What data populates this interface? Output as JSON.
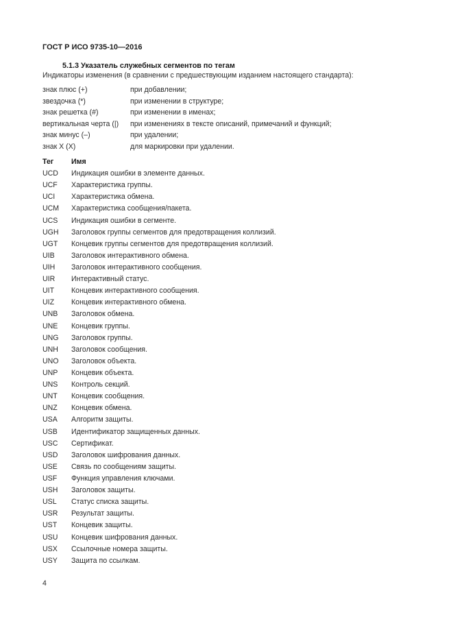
{
  "header": "ГОСТ Р ИСО 9735-10—2016",
  "section_title": "5.1.3 Указатель служебных сегментов по тегам",
  "intro": "Индикаторы изменения (в сравнении с предшествующим изданием настоящего стандарта):",
  "indicators": [
    {
      "sign": "знак плюс (+)",
      "meaning": "при добавлении;"
    },
    {
      "sign": "звездочка (*)",
      "meaning": "при изменении в структуре;"
    },
    {
      "sign": "знак решетка (#)",
      "meaning": "при изменении в именах;"
    },
    {
      "sign": "вертикальная черта (|)",
      "meaning": "при изменениях в тексте описаний, примечаний и функций;"
    },
    {
      "sign": "знак минус (–)",
      "meaning": "при удалении;"
    },
    {
      "sign": "знак X (X)",
      "meaning": "для маркировки при удалении."
    }
  ],
  "table": {
    "headers": {
      "tag": "Тег",
      "name": "Имя"
    },
    "rows": [
      {
        "tag": "UCD",
        "name": "Индикация ошибки в элементе данных."
      },
      {
        "tag": "UCF",
        "name": "Характеристика группы."
      },
      {
        "tag": "UCI",
        "name": "Характеристика обмена."
      },
      {
        "tag": "UCM",
        "name": "Характеристика сообщения/пакета."
      },
      {
        "tag": "UCS",
        "name": "Индикация ошибки в сегменте."
      },
      {
        "tag": "UGH",
        "name": "Заголовок группы сегментов для предотвращения коллизий."
      },
      {
        "tag": "UGT",
        "name": "Концевик группы сегментов для предотвращения коллизий."
      },
      {
        "tag": "UIB",
        "name": "Заголовок интерактивного обмена."
      },
      {
        "tag": "UIH",
        "name": "Заголовок интерактивного сообщения."
      },
      {
        "tag": "UIR",
        "name": "Интерактивный статус."
      },
      {
        "tag": "UIT",
        "name": "Концевик интерактивного сообщения."
      },
      {
        "tag": "UIZ",
        "name": "Концевик интерактивного обмена."
      },
      {
        "tag": "UNB",
        "name": "Заголовок обмена."
      },
      {
        "tag": "UNE",
        "name": "Концевик группы."
      },
      {
        "tag": "UNG",
        "name": "Заголовок группы."
      },
      {
        "tag": "UNH",
        "name": "Заголовок сообщения."
      },
      {
        "tag": "UNO",
        "name": "Заголовок объекта."
      },
      {
        "tag": "UNP",
        "name": "Концевик объекта."
      },
      {
        "tag": "UNS",
        "name": "Контроль секций."
      },
      {
        "tag": "UNT",
        "name": "Концевик сообщения."
      },
      {
        "tag": "UNZ",
        "name": "Концевик обмена."
      },
      {
        "tag": "USA",
        "name": "Алгоритм защиты."
      },
      {
        "tag": "USB",
        "name": "Идентификатор защищенных данных."
      },
      {
        "tag": "USC",
        "name": "Сертификат."
      },
      {
        "tag": "USD",
        "name": "Заголовок шифрования данных."
      },
      {
        "tag": "USE",
        "name": "Связь по сообщениям защиты."
      },
      {
        "tag": "USF",
        "name": "Функция управления ключами."
      },
      {
        "tag": "USH",
        "name": "Заголовок защиты."
      },
      {
        "tag": "USL",
        "name": "Статус списка защиты."
      },
      {
        "tag": "USR",
        "name": "Результат защиты."
      },
      {
        "tag": "UST",
        "name": "Концевик защиты."
      },
      {
        "tag": "USU",
        "name": "Концевик шифрования данных."
      },
      {
        "tag": "USX",
        "name": "Ссылочные номера защиты."
      },
      {
        "tag": "USY",
        "name": "Защита по ссылкам."
      }
    ]
  },
  "page_number": "4"
}
